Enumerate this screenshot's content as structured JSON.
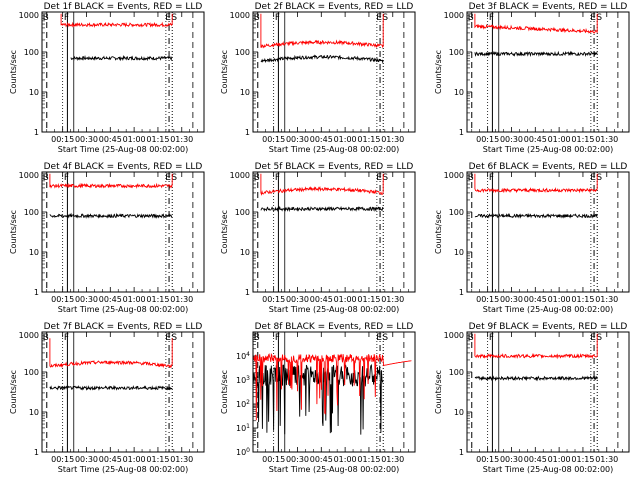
{
  "figure": {
    "ylabel": "Counts/sec",
    "xlabel": "Start Time (25-Aug-08 00:02:00)",
    "colors": {
      "events": "#000000",
      "lld": "#ff0000",
      "frame": "#000000"
    },
    "tick_labels": [
      "00:15",
      "00:30",
      "00:45",
      "01:00",
      "01:15",
      "01:30"
    ]
  },
  "chart_data": [
    {
      "type": "line",
      "title": "Det 1f BLACK = Events, RED = LLD",
      "ylim": [
        1,
        1000
      ],
      "yscale": "log",
      "xlim_minutes": [
        2,
        104
      ],
      "yticks": [
        "1",
        "10",
        "100",
        "1000"
      ],
      "markers": [
        {
          "label": "B",
          "minute": 5
        },
        {
          "label": "F",
          "minute": 18
        },
        {
          "label": "E",
          "minute": 82
        },
        {
          "label": "S",
          "minute": 84
        }
      ],
      "series": [
        {
          "name": "Events",
          "color": "#000000",
          "start": 20,
          "end": 84,
          "level": 70,
          "shape": "flat"
        },
        {
          "name": "LLD",
          "color": "#ff0000",
          "start": 14,
          "end": 84,
          "level": 480,
          "shape": "flat",
          "left_spike": 900,
          "right_spike": 900
        }
      ]
    },
    {
      "type": "line",
      "title": "Det 2f BLACK = Events, RED = LLD",
      "ylim": [
        1,
        1000
      ],
      "yscale": "log",
      "xlim_minutes": [
        2,
        104
      ],
      "yticks": [
        "1",
        "10",
        "100",
        "1000"
      ],
      "markers": [
        {
          "label": "B",
          "minute": 5
        },
        {
          "label": "F",
          "minute": 18
        },
        {
          "label": "E",
          "minute": 82
        },
        {
          "label": "S",
          "minute": 84
        }
      ],
      "series": [
        {
          "name": "Events",
          "color": "#000000",
          "start": 7,
          "end": 84,
          "level": 60,
          "shape": "hump"
        },
        {
          "name": "LLD",
          "color": "#ff0000",
          "start": 7,
          "end": 84,
          "level": 140,
          "shape": "hump",
          "left_spike": 900,
          "right_spike": 900
        }
      ]
    },
    {
      "type": "line",
      "title": "Det 3f BLACK = Events, RED = LLD",
      "ylim": [
        1,
        1000
      ],
      "yscale": "log",
      "xlim_minutes": [
        2,
        104
      ],
      "yticks": [
        "1",
        "10",
        "100",
        "1000"
      ],
      "markers": [
        {
          "label": "B",
          "minute": 5
        },
        {
          "label": "F",
          "minute": 18
        },
        {
          "label": "E",
          "minute": 82
        },
        {
          "label": "S",
          "minute": 84
        }
      ],
      "series": [
        {
          "name": "Events",
          "color": "#000000",
          "start": 7,
          "end": 84,
          "level": 90,
          "shape": "flat"
        },
        {
          "name": "LLD",
          "color": "#ff0000",
          "start": 7,
          "end": 84,
          "level": 400,
          "shape": "declining",
          "left_spike": 900,
          "right_spike": 900
        }
      ]
    },
    {
      "type": "line",
      "title": "Det 4f BLACK = Events, RED = LLD",
      "ylim": [
        1,
        1000
      ],
      "yscale": "log",
      "xlim_minutes": [
        2,
        104
      ],
      "yticks": [
        "1",
        "10",
        "100",
        "1000"
      ],
      "markers": [
        {
          "label": "B",
          "minute": 5
        },
        {
          "label": "F",
          "minute": 18
        },
        {
          "label": "E",
          "minute": 82
        },
        {
          "label": "S",
          "minute": 84
        }
      ],
      "series": [
        {
          "name": "Events",
          "color": "#000000",
          "start": 7,
          "end": 84,
          "level": 80,
          "shape": "flat"
        },
        {
          "name": "LLD",
          "color": "#ff0000",
          "start": 7,
          "end": 84,
          "level": 450,
          "shape": "flat",
          "left_spike": 900,
          "right_spike": 900
        }
      ]
    },
    {
      "type": "line",
      "title": "Det 5f BLACK = Events, RED = LLD",
      "ylim": [
        1,
        1000
      ],
      "yscale": "log",
      "xlim_minutes": [
        2,
        104
      ],
      "yticks": [
        "1",
        "10",
        "100",
        "1000"
      ],
      "markers": [
        {
          "label": "B",
          "minute": 5
        },
        {
          "label": "F",
          "minute": 18
        },
        {
          "label": "E",
          "minute": 82
        },
        {
          "label": "S",
          "minute": 84
        }
      ],
      "series": [
        {
          "name": "Events",
          "color": "#000000",
          "start": 7,
          "end": 84,
          "level": 120,
          "shape": "flat"
        },
        {
          "name": "LLD",
          "color": "#ff0000",
          "start": 7,
          "end": 84,
          "level": 300,
          "shape": "hump",
          "left_spike": 900,
          "right_spike": 900
        }
      ]
    },
    {
      "type": "line",
      "title": "Det 6f BLACK = Events, RED = LLD",
      "ylim": [
        1,
        1000
      ],
      "yscale": "log",
      "xlim_minutes": [
        2,
        104
      ],
      "yticks": [
        "1",
        "10",
        "100",
        "1000"
      ],
      "markers": [
        {
          "label": "B",
          "minute": 5
        },
        {
          "label": "F",
          "minute": 18
        },
        {
          "label": "E",
          "minute": 82
        },
        {
          "label": "S",
          "minute": 84
        }
      ],
      "series": [
        {
          "name": "Events",
          "color": "#000000",
          "start": 7,
          "end": 84,
          "level": 80,
          "shape": "flat"
        },
        {
          "name": "LLD",
          "color": "#ff0000",
          "start": 7,
          "end": 84,
          "level": 350,
          "shape": "flat",
          "left_spike": 900,
          "right_spike": 900
        }
      ]
    },
    {
      "type": "line",
      "title": "Det 7f BLACK = Events, RED = LLD",
      "ylim": [
        1,
        1000
      ],
      "yscale": "log",
      "xlim_minutes": [
        2,
        104
      ],
      "yticks": [
        "1",
        "10",
        "100",
        "1000"
      ],
      "markers": [
        {
          "label": "B",
          "minute": 5
        },
        {
          "label": "F",
          "minute": 18
        },
        {
          "label": "E",
          "minute": 82
        },
        {
          "label": "S",
          "minute": 84
        }
      ],
      "series": [
        {
          "name": "Events",
          "color": "#000000",
          "start": 7,
          "end": 84,
          "level": 40,
          "shape": "flat"
        },
        {
          "name": "LLD",
          "color": "#ff0000",
          "start": 7,
          "end": 84,
          "level": 140,
          "shape": "hump",
          "left_spike": 700,
          "right_spike": 700
        }
      ]
    },
    {
      "type": "line",
      "title": "Det 8f BLACK = Events, RED = LLD",
      "ylim": [
        1,
        100000
      ],
      "yscale": "log",
      "xlim_minutes": [
        2,
        104
      ],
      "yticks": [
        "10^0",
        "10^1",
        "10^2",
        "10^3",
        "10^4"
      ],
      "markers": [
        {
          "label": "B",
          "minute": 5
        },
        {
          "label": "F",
          "minute": 18
        },
        {
          "label": "E",
          "minute": 82
        },
        {
          "label": "S",
          "minute": 84
        }
      ],
      "series": [
        {
          "name": "Events",
          "color": "#000000",
          "start": 2,
          "end": 84,
          "level": 1500,
          "shape": "noisy"
        },
        {
          "name": "LLD",
          "color": "#ff0000",
          "start": 2,
          "end": 102,
          "level": 8000,
          "shape": "dips"
        }
      ]
    },
    {
      "type": "line",
      "title": "Det 9f BLACK = Events, RED = LLD",
      "ylim": [
        1,
        1000
      ],
      "yscale": "log",
      "xlim_minutes": [
        2,
        104
      ],
      "yticks": [
        "1",
        "10",
        "100",
        "1000"
      ],
      "markers": [
        {
          "label": "B",
          "minute": 5
        },
        {
          "label": "F",
          "minute": 18
        },
        {
          "label": "E",
          "minute": 82
        },
        {
          "label": "S",
          "minute": 84
        }
      ],
      "series": [
        {
          "name": "Events",
          "color": "#000000",
          "start": 7,
          "end": 84,
          "level": 70,
          "shape": "flat"
        },
        {
          "name": "LLD",
          "color": "#ff0000",
          "start": 7,
          "end": 84,
          "level": 250,
          "shape": "flat",
          "left_spike": 900,
          "right_spike": 900
        }
      ]
    }
  ]
}
